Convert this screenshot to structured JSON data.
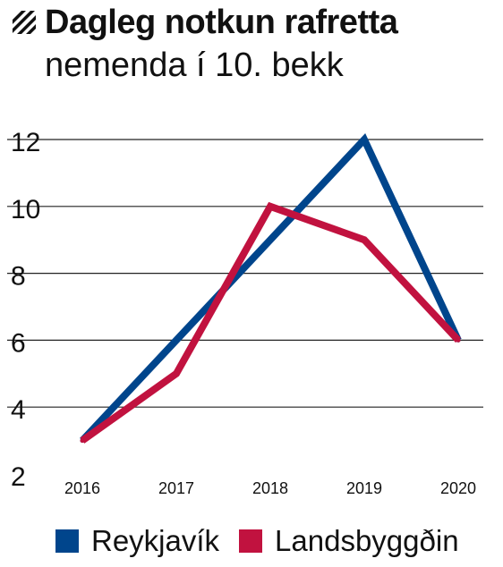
{
  "header": {
    "title": "Dagleg notkun rafretta",
    "subtitle": "nemenda í 10. bekk"
  },
  "icons": {
    "title_icon": "diagonal-stripes-icon"
  },
  "colors": {
    "Reykjavík": "#00458c",
    "Landsbyggðin": "#c1123f",
    "grid": "#222222",
    "text": "#111111"
  },
  "chart_data": {
    "type": "line",
    "title": "Dagleg notkun rafretta",
    "subtitle": "nemenda í 10. bekk",
    "xlabel": "",
    "ylabel": "",
    "categories": [
      "2016",
      "2017",
      "2018",
      "2019",
      "2020"
    ],
    "ylim": [
      2,
      12
    ],
    "yticks": [
      "2",
      "4",
      "6",
      "8",
      "10",
      "12"
    ],
    "grid": true,
    "legend_position": "bottom",
    "series": [
      {
        "name": "Reykjavík",
        "values": [
          3,
          6,
          9,
          12,
          6
        ]
      },
      {
        "name": "Landsbyggðin",
        "values": [
          3,
          5,
          10,
          9,
          6
        ]
      }
    ]
  }
}
